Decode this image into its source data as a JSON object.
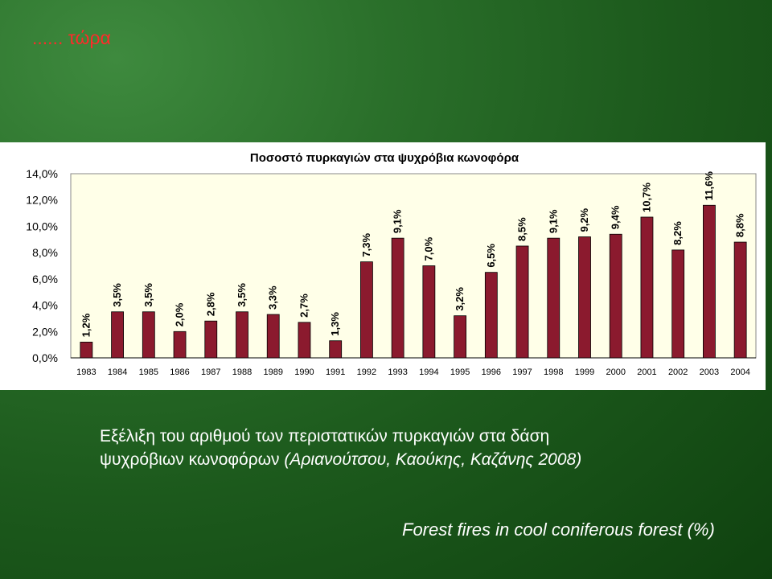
{
  "slide": {
    "title": "...... τώρα",
    "caption_line1": "Εξέλιξη του αριθμού των περιστατικών πυρκαγιών στα δάση",
    "caption_line2_prefix": "ψυχρόβιων κωνοφόρων ",
    "caption_line2_citation": "(Αριανούτσου, Καούκης, Καζάνης 2008)",
    "caption_english": "Forest fires in cool coniferous forest (%)"
  },
  "colors": {
    "bar": "#8b1a2e",
    "plot_background": "#ffffe8",
    "slide_title": "#ff2a2a"
  },
  "chart_data": {
    "type": "bar",
    "title": "Ποσοστό πυρκαγιών στα ψυχρόβια κωνοφόρα",
    "categories": [
      "1983",
      "1984",
      "1985",
      "1986",
      "1987",
      "1988",
      "1989",
      "1990",
      "1991",
      "1992",
      "1993",
      "1994",
      "1995",
      "1996",
      "1997",
      "1998",
      "1999",
      "2000",
      "2001",
      "2002",
      "2003",
      "2004"
    ],
    "values": [
      1.2,
      3.5,
      3.5,
      2.0,
      2.8,
      3.5,
      3.3,
      2.7,
      1.3,
      7.3,
      9.1,
      7.0,
      3.2,
      6.5,
      8.5,
      9.1,
      9.2,
      9.4,
      10.7,
      8.2,
      11.6,
      8.8
    ],
    "data_labels": [
      "1,2%",
      "3,5%",
      "3,5%",
      "2,0%",
      "2,8%",
      "3,5%",
      "3,3%",
      "2,7%",
      "1,3%",
      "7,3%",
      "9,1%",
      "7,0%",
      "3,2%",
      "6,5%",
      "8,5%",
      "9,1%",
      "9,2%",
      "9,4%",
      "10,7%",
      "8,2%",
      "11,6%",
      "8,8%"
    ],
    "ylim": [
      0,
      14
    ],
    "yticks": [
      0,
      2,
      4,
      6,
      8,
      10,
      12,
      14
    ],
    "ytick_labels": [
      "0,0%",
      "2,0%",
      "4,0%",
      "6,0%",
      "8,0%",
      "10,0%",
      "12,0%",
      "14,0%"
    ],
    "xlabel": "",
    "ylabel": "",
    "grid": false,
    "legend": false
  }
}
